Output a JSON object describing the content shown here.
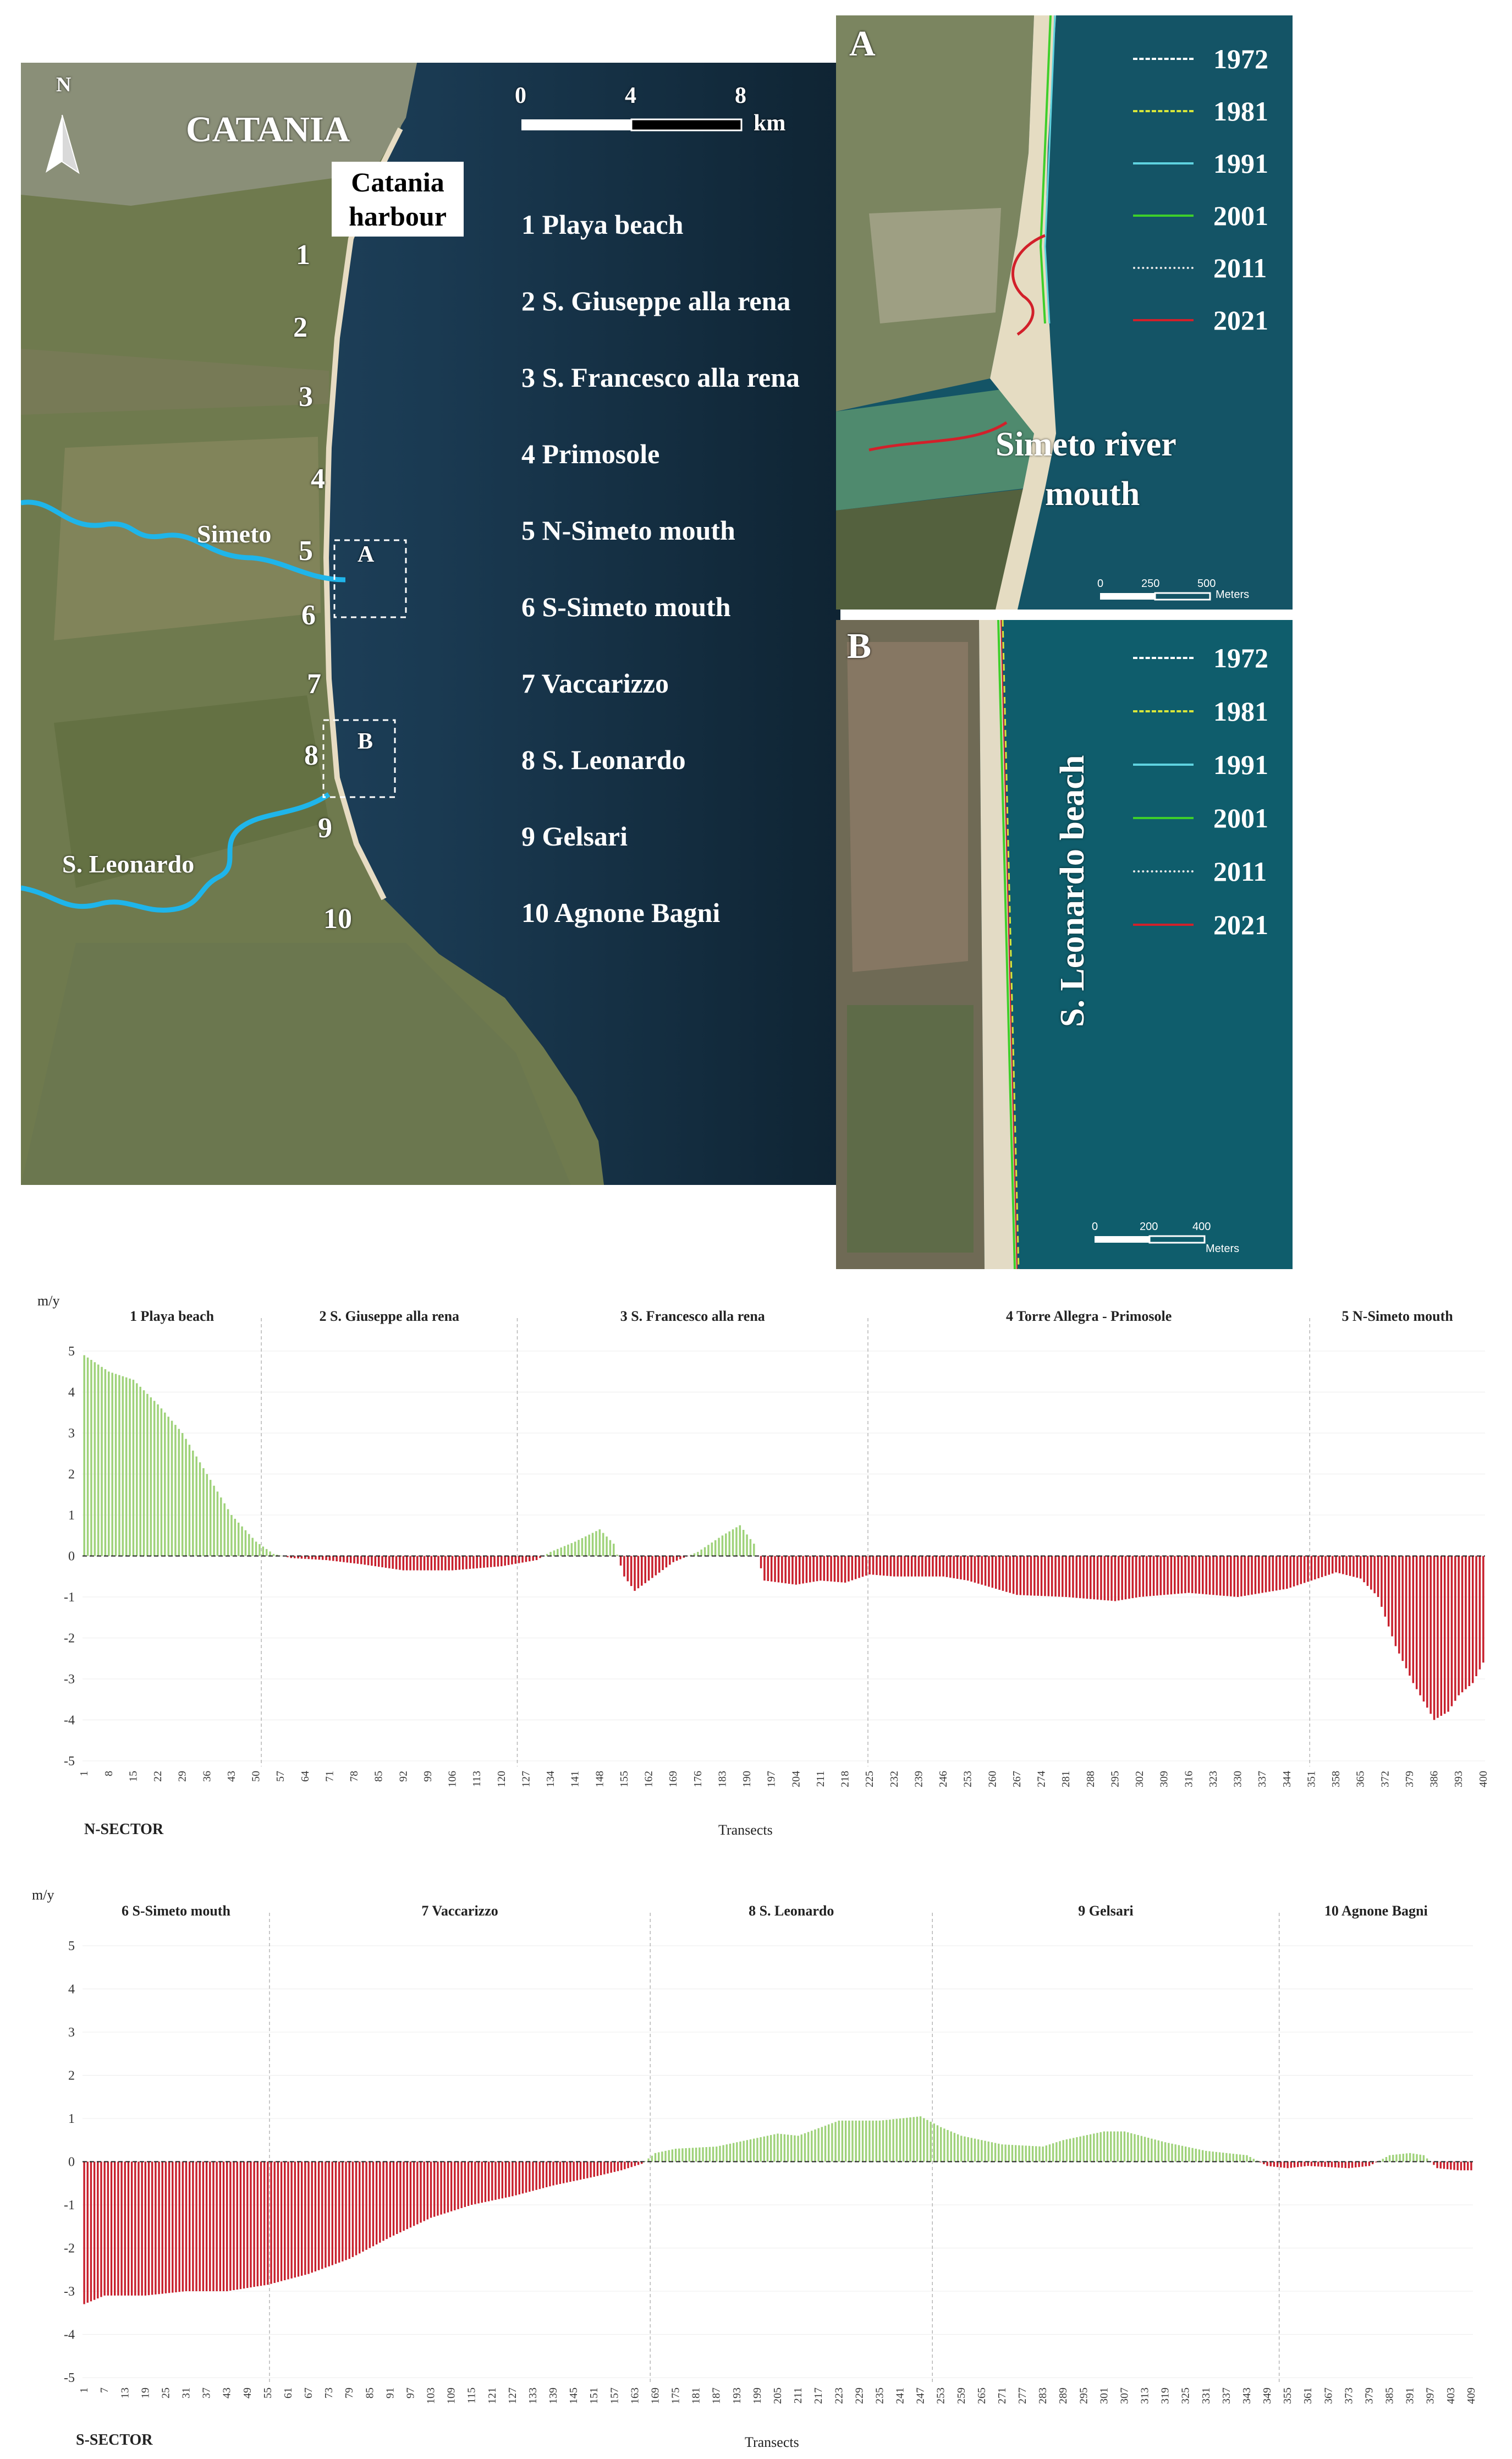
{
  "map": {
    "city": "CATANIA",
    "harbour": "Catania harbour",
    "north": "N",
    "scale": {
      "ticks": [
        "0",
        "4",
        "8"
      ],
      "unit": "km"
    },
    "rivers": {
      "simeto": "Simeto",
      "leonardo": "S. Leonardo"
    },
    "box_a": "A",
    "box_b": "B",
    "beach_numbers": [
      "1",
      "2",
      "3",
      "4",
      "5",
      "6",
      "7",
      "8",
      "9",
      "10"
    ],
    "beach_list": [
      "1 Playa beach",
      "2 S. Giuseppe alla rena",
      "3 S. Francesco alla rena",
      "4 Primosole",
      "5 N-Simeto mouth",
      "6 S-Simeto mouth",
      "7 Vaccarizzo",
      "8 S. Leonardo",
      "9 Gelsari",
      "10 Agnone Bagni"
    ]
  },
  "inset_a": {
    "letter": "A",
    "title_line1": "Simeto river",
    "title_line2": "mouth",
    "scale": {
      "ticks": [
        "0",
        "250",
        "500"
      ],
      "unit": "Meters"
    }
  },
  "inset_b": {
    "letter": "B",
    "title": "S. Leonardo beach",
    "scale": {
      "ticks": [
        "0",
        "200",
        "400"
      ],
      "unit": "Meters"
    }
  },
  "shoreline_legend": [
    {
      "year": "1972",
      "color": "#ffffff",
      "style": "dash-dot"
    },
    {
      "year": "1981",
      "color": "#d8e63a",
      "style": "dashed"
    },
    {
      "year": "1991",
      "color": "#5fd3e0",
      "style": "solid"
    },
    {
      "year": "2001",
      "color": "#3ecf2a",
      "style": "solid"
    },
    {
      "year": "2011",
      "color": "#e8e8e8",
      "style": "dash-dot-dot"
    },
    {
      "year": "2021",
      "color": "#d2202a",
      "style": "solid"
    }
  ],
  "chart_data": [
    {
      "type": "bar",
      "sector": "N-SECTOR",
      "ylabel": "m/y",
      "xlabel": "Transects",
      "ylim": [
        -5,
        5
      ],
      "yticks": [
        "5",
        "4",
        "3",
        "2",
        "1",
        "0",
        "-1",
        "-2",
        "-3",
        "-4",
        "-5"
      ],
      "n_transects": 400,
      "xticks": [
        "1",
        "8",
        "15",
        "22",
        "29",
        "36",
        "43",
        "50",
        "57",
        "64",
        "71",
        "78",
        "85",
        "92",
        "99",
        "106",
        "113",
        "120",
        "127",
        "134",
        "141",
        "148",
        "155",
        "162",
        "169",
        "176",
        "183",
        "190",
        "197",
        "204",
        "211",
        "218",
        "225",
        "232",
        "239",
        "246",
        "253",
        "260",
        "267",
        "274",
        "281",
        "288",
        "295",
        "302",
        "309",
        "316",
        "323",
        "330",
        "337",
        "344",
        "351",
        "358",
        "365",
        "372",
        "379",
        "386",
        "393",
        "400"
      ],
      "segments": [
        {
          "label": "1 Playa beach",
          "start": 1,
          "end": 51
        },
        {
          "label": "2 S. Giuseppe alla rena",
          "start": 52,
          "end": 124
        },
        {
          "label": "3 S. Francesco alla rena",
          "start": 125,
          "end": 224
        },
        {
          "label": "4 Torre Allegra - Primosole",
          "start": 225,
          "end": 350
        },
        {
          "label": "5 N-Simeto mouth",
          "start": 351,
          "end": 400
        }
      ],
      "profile": [
        [
          1,
          4.9
        ],
        [
          8,
          4.5
        ],
        [
          15,
          4.3
        ],
        [
          22,
          3.7
        ],
        [
          29,
          3.0
        ],
        [
          36,
          2.0
        ],
        [
          43,
          1.0
        ],
        [
          50,
          0.35
        ],
        [
          55,
          0.05
        ],
        [
          60,
          -0.05
        ],
        [
          70,
          -0.1
        ],
        [
          80,
          -0.2
        ],
        [
          92,
          -0.35
        ],
        [
          106,
          -0.35
        ],
        [
          120,
          -0.25
        ],
        [
          130,
          -0.1
        ],
        [
          134,
          0.1
        ],
        [
          141,
          0.35
        ],
        [
          148,
          0.65
        ],
        [
          152,
          0.3
        ],
        [
          155,
          -0.5
        ],
        [
          158,
          -0.85
        ],
        [
          162,
          -0.6
        ],
        [
          169,
          -0.15
        ],
        [
          176,
          0.1
        ],
        [
          183,
          0.5
        ],
        [
          188,
          0.75
        ],
        [
          192,
          0.3
        ],
        [
          195,
          -0.6
        ],
        [
          204,
          -0.7
        ],
        [
          211,
          -0.6
        ],
        [
          218,
          -0.65
        ],
        [
          225,
          -0.45
        ],
        [
          232,
          -0.5
        ],
        [
          246,
          -0.5
        ],
        [
          253,
          -0.6
        ],
        [
          267,
          -0.95
        ],
        [
          281,
          -1.0
        ],
        [
          295,
          -1.1
        ],
        [
          302,
          -1.0
        ],
        [
          316,
          -0.9
        ],
        [
          330,
          -1.0
        ],
        [
          344,
          -0.8
        ],
        [
          351,
          -0.6
        ],
        [
          358,
          -0.4
        ],
        [
          365,
          -0.55
        ],
        [
          370,
          -1.0
        ],
        [
          375,
          -2.2
        ],
        [
          380,
          -3.1
        ],
        [
          386,
          -4.0
        ],
        [
          390,
          -3.8
        ],
        [
          393,
          -3.4
        ],
        [
          397,
          -3.1
        ],
        [
          400,
          -2.6
        ]
      ]
    },
    {
      "type": "bar",
      "sector": "S-SECTOR",
      "ylabel": "m/y",
      "xlabel": "Transects",
      "ylim": [
        -5,
        5
      ],
      "yticks": [
        "5",
        "4",
        "3",
        "2",
        "1",
        "0",
        "-1",
        "-2",
        "-3",
        "-4",
        "-5"
      ],
      "n_transects": 409,
      "xticks": [
        "1",
        "7",
        "13",
        "19",
        "25",
        "31",
        "37",
        "43",
        "49",
        "55",
        "61",
        "67",
        "73",
        "79",
        "85",
        "91",
        "97",
        "103",
        "109",
        "115",
        "121",
        "127",
        "133",
        "139",
        "145",
        "151",
        "157",
        "163",
        "169",
        "175",
        "181",
        "187",
        "193",
        "199",
        "205",
        "211",
        "217",
        "223",
        "229",
        "235",
        "241",
        "247",
        "253",
        "259",
        "265",
        "271",
        "277",
        "283",
        "289",
        "295",
        "301",
        "307",
        "313",
        "319",
        "325",
        "331",
        "337",
        "343",
        "349",
        "355",
        "361",
        "367",
        "373",
        "379",
        "385",
        "391",
        "397",
        "403",
        "409"
      ],
      "segments": [
        {
          "label": "6 S-Simeto mouth",
          "start": 1,
          "end": 55
        },
        {
          "label": "7 Vaccarizzo",
          "start": 56,
          "end": 167
        },
        {
          "label": "8 S. Leonardo",
          "start": 168,
          "end": 250
        },
        {
          "label": "9 Gelsari",
          "start": 251,
          "end": 352
        },
        {
          "label": "10 Agnone Bagni",
          "start": 353,
          "end": 409
        }
      ],
      "profile": [
        [
          1,
          -3.3
        ],
        [
          7,
          -3.1
        ],
        [
          19,
          -3.1
        ],
        [
          31,
          -3.0
        ],
        [
          43,
          -3.0
        ],
        [
          55,
          -2.85
        ],
        [
          67,
          -2.6
        ],
        [
          79,
          -2.25
        ],
        [
          91,
          -1.75
        ],
        [
          103,
          -1.3
        ],
        [
          115,
          -1.0
        ],
        [
          127,
          -0.8
        ],
        [
          139,
          -0.55
        ],
        [
          151,
          -0.35
        ],
        [
          159,
          -0.2
        ],
        [
          165,
          -0.05
        ],
        [
          169,
          0.2
        ],
        [
          175,
          0.3
        ],
        [
          187,
          0.35
        ],
        [
          199,
          0.55
        ],
        [
          205,
          0.65
        ],
        [
          211,
          0.6
        ],
        [
          223,
          0.95
        ],
        [
          235,
          0.95
        ],
        [
          247,
          1.05
        ],
        [
          253,
          0.8
        ],
        [
          259,
          0.6
        ],
        [
          271,
          0.4
        ],
        [
          283,
          0.35
        ],
        [
          289,
          0.5
        ],
        [
          301,
          0.7
        ],
        [
          307,
          0.7
        ],
        [
          319,
          0.45
        ],
        [
          331,
          0.25
        ],
        [
          337,
          0.2
        ],
        [
          343,
          0.15
        ],
        [
          349,
          -0.1
        ],
        [
          355,
          -0.15
        ],
        [
          361,
          -0.1
        ],
        [
          373,
          -0.15
        ],
        [
          379,
          -0.1
        ],
        [
          385,
          0.15
        ],
        [
          391,
          0.2
        ],
        [
          395,
          0.15
        ],
        [
          399,
          -0.15
        ],
        [
          405,
          -0.2
        ],
        [
          409,
          -0.2
        ]
      ]
    }
  ]
}
